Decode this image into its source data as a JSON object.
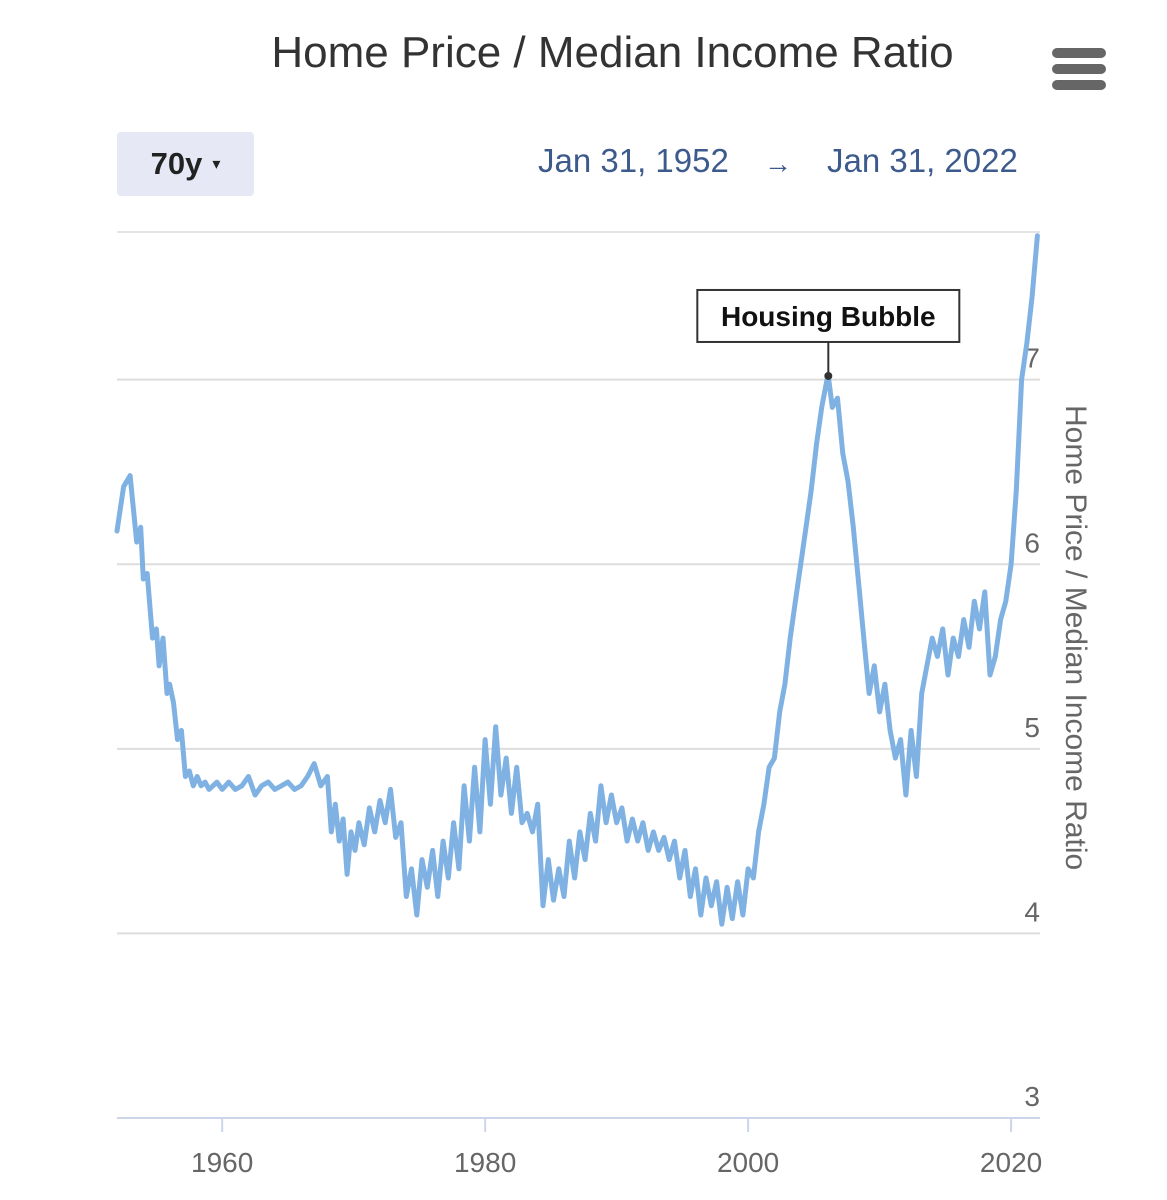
{
  "header": {
    "title": "Home Price / Median Income Ratio",
    "menu_icon": "hamburger-menu-icon"
  },
  "range_selector": {
    "label": "70y",
    "caret": "▾",
    "start_date": "Jan 31, 1952",
    "arrow": "→",
    "end_date": "Jan 31, 2022"
  },
  "colors": {
    "line": "#7fb2e3",
    "grid": "#dddddd",
    "axis_text": "#666666",
    "date_text": "#3d5a8c"
  },
  "chart_data": {
    "type": "line",
    "title": "Home Price / Median Income Ratio",
    "ylabel": "Home Price / Median Income Ratio",
    "xlabel": "",
    "xlim": [
      1952,
      2022.2
    ],
    "ylim": [
      3,
      7.8
    ],
    "x_ticks": [
      1960,
      1980,
      2000,
      2020
    ],
    "x_tick_labels": [
      "1960",
      "1980",
      "2000",
      "2020"
    ],
    "y_ticks": [
      3,
      4,
      5,
      6,
      7
    ],
    "y_tick_labels": [
      "3",
      "4",
      "5",
      "6",
      "7"
    ],
    "grid": "horizontal",
    "annotation": {
      "text": "Housing Bubble",
      "x": 2006.1,
      "y": 7.02
    },
    "series": [
      {
        "x": [
          1952.0,
          1952.5,
          1953.0,
          1953.5,
          1953.8,
          1954.0,
          1954.3,
          1954.7,
          1955.0,
          1955.2,
          1955.5,
          1955.8,
          1956.0,
          1956.3,
          1956.6,
          1956.9,
          1957.2,
          1957.5,
          1957.8,
          1958.1,
          1958.4,
          1958.7,
          1959.0,
          1959.3,
          1959.6,
          1960.0,
          1960.5,
          1961.0,
          1961.5,
          1962.0,
          1962.5,
          1963.0,
          1963.5,
          1964.0,
          1964.5,
          1965.0,
          1965.5,
          1966.0,
          1966.5,
          1967.0,
          1967.5,
          1968.0,
          1968.3,
          1968.6,
          1968.9,
          1969.2,
          1969.5,
          1969.8,
          1970.1,
          1970.4,
          1970.8,
          1971.2,
          1971.6,
          1972.0,
          1972.4,
          1972.8,
          1973.2,
          1973.6,
          1974.0,
          1974.4,
          1974.8,
          1975.2,
          1975.6,
          1976.0,
          1976.4,
          1976.8,
          1977.2,
          1977.6,
          1978.0,
          1978.4,
          1978.8,
          1979.2,
          1979.6,
          1980.0,
          1980.4,
          1980.8,
          1981.2,
          1981.6,
          1982.0,
          1982.4,
          1982.8,
          1983.2,
          1983.6,
          1984.0,
          1984.4,
          1984.8,
          1985.2,
          1985.6,
          1986.0,
          1986.4,
          1986.8,
          1987.2,
          1987.6,
          1988.0,
          1988.4,
          1988.8,
          1989.2,
          1989.6,
          1990.0,
          1990.4,
          1990.8,
          1991.2,
          1991.6,
          1992.0,
          1992.4,
          1992.8,
          1993.2,
          1993.6,
          1994.0,
          1994.4,
          1994.8,
          1995.2,
          1995.6,
          1996.0,
          1996.4,
          1996.8,
          1997.2,
          1997.6,
          1998.0,
          1998.4,
          1998.8,
          1999.2,
          1999.6,
          2000.0,
          2000.4,
          2000.8,
          2001.2,
          2001.6,
          2002.0,
          2002.4,
          2002.8,
          2003.2,
          2003.6,
          2004.0,
          2004.4,
          2004.8,
          2005.2,
          2005.6,
          2006.0,
          2006.1,
          2006.4,
          2006.8,
          2007.2,
          2007.6,
          2008.0,
          2008.4,
          2008.8,
          2009.2,
          2009.6,
          2010.0,
          2010.4,
          2010.8,
          2011.2,
          2011.6,
          2012.0,
          2012.4,
          2012.8,
          2013.2,
          2013.6,
          2014.0,
          2014.4,
          2014.8,
          2015.2,
          2015.6,
          2016.0,
          2016.4,
          2016.8,
          2017.2,
          2017.6,
          2018.0,
          2018.4,
          2018.8,
          2019.2,
          2019.6,
          2020.0,
          2020.4,
          2020.8,
          2021.2,
          2021.6,
          2022.0
        ],
        "values": [
          6.18,
          6.42,
          6.48,
          6.12,
          6.2,
          5.92,
          5.95,
          5.6,
          5.65,
          5.45,
          5.6,
          5.3,
          5.35,
          5.25,
          5.05,
          5.1,
          4.85,
          4.88,
          4.8,
          4.85,
          4.8,
          4.82,
          4.78,
          4.8,
          4.82,
          4.78,
          4.82,
          4.78,
          4.8,
          4.85,
          4.75,
          4.8,
          4.82,
          4.78,
          4.8,
          4.82,
          4.78,
          4.8,
          4.85,
          4.92,
          4.8,
          4.85,
          4.55,
          4.7,
          4.5,
          4.62,
          4.32,
          4.55,
          4.45,
          4.6,
          4.48,
          4.68,
          4.55,
          4.72,
          4.6,
          4.78,
          4.52,
          4.6,
          4.2,
          4.35,
          4.1,
          4.4,
          4.25,
          4.45,
          4.2,
          4.5,
          4.3,
          4.6,
          4.35,
          4.8,
          4.5,
          4.9,
          4.55,
          5.05,
          4.7,
          5.12,
          4.75,
          4.95,
          4.65,
          4.9,
          4.6,
          4.65,
          4.55,
          4.7,
          4.15,
          4.4,
          4.18,
          4.35,
          4.2,
          4.5,
          4.3,
          4.55,
          4.4,
          4.65,
          4.5,
          4.8,
          4.6,
          4.75,
          4.6,
          4.68,
          4.5,
          4.62,
          4.5,
          4.6,
          4.45,
          4.55,
          4.45,
          4.52,
          4.4,
          4.5,
          4.3,
          4.45,
          4.2,
          4.35,
          4.1,
          4.3,
          4.15,
          4.28,
          4.05,
          4.25,
          4.08,
          4.28,
          4.1,
          4.35,
          4.3,
          4.55,
          4.7,
          4.9,
          4.95,
          5.2,
          5.35,
          5.6,
          5.8,
          6.0,
          6.2,
          6.4,
          6.65,
          6.85,
          7.0,
          7.02,
          6.85,
          6.9,
          6.6,
          6.45,
          6.2,
          5.9,
          5.6,
          5.3,
          5.45,
          5.2,
          5.35,
          5.1,
          4.95,
          5.05,
          4.75,
          5.1,
          4.85,
          5.3,
          5.45,
          5.6,
          5.5,
          5.65,
          5.4,
          5.6,
          5.5,
          5.7,
          5.55,
          5.8,
          5.65,
          5.85,
          5.4,
          5.5,
          5.7,
          5.8,
          6.0,
          6.4,
          7.0,
          7.2,
          7.45,
          7.78
        ]
      }
    ]
  }
}
